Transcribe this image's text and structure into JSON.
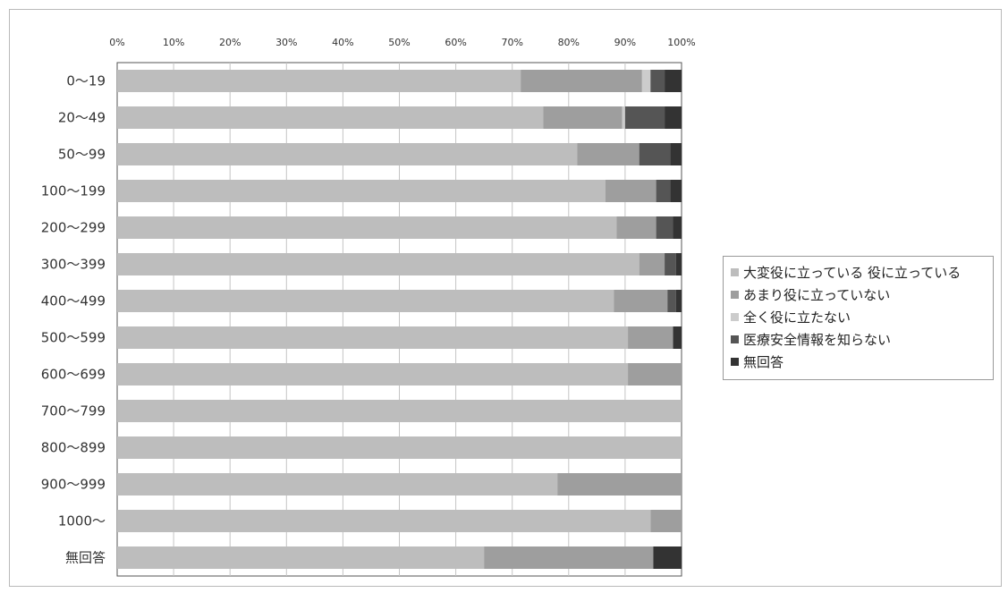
{
  "chart_data": {
    "type": "bar",
    "orientation": "horizontal",
    "stacked": true,
    "title": "",
    "xlabel": "",
    "ylabel": "",
    "xlim": [
      0,
      100
    ],
    "x_ticks": [
      "0%",
      "10%",
      "20%",
      "30%",
      "40%",
      "50%",
      "60%",
      "70%",
      "80%",
      "90%",
      "100%"
    ],
    "grid": true,
    "legend_position": "right",
    "categories": [
      "0～19",
      "20～49",
      "50～99",
      "100～199",
      "200～299",
      "300～399",
      "400～499",
      "500～599",
      "600～699",
      "700～799",
      "800～899",
      "900～999",
      "1000～",
      "無回答"
    ],
    "series": [
      {
        "name": "大変役に立っている 役に立っている",
        "color": "#bdbdbd",
        "values": [
          71.5,
          75.5,
          81.5,
          86.5,
          88.5,
          92.5,
          88.0,
          90.5,
          90.5,
          100,
          100,
          78.0,
          94.5,
          65.0
        ]
      },
      {
        "name": "あまり役に立っていない",
        "color": "#9e9e9e",
        "values": [
          21.5,
          14.0,
          11.0,
          9.0,
          7.0,
          4.5,
          9.5,
          8.0,
          9.5,
          0,
          0,
          22.0,
          5.5,
          30.0
        ]
      },
      {
        "name": "全く役に立たない",
        "color": "#cccccc",
        "values": [
          1.5,
          0.5,
          0,
          0,
          0,
          0,
          0,
          0,
          0,
          0,
          0,
          0,
          0,
          0
        ]
      },
      {
        "name": "医療安全情報を知らない",
        "color": "#555555",
        "values": [
          2.5,
          7.0,
          5.5,
          2.5,
          3.0,
          2.0,
          1.5,
          0,
          0,
          0,
          0,
          0,
          0,
          0
        ]
      },
      {
        "name": "無回答",
        "color": "#333333",
        "values": [
          3.0,
          3.0,
          2.0,
          2.0,
          1.5,
          1.0,
          1.0,
          1.5,
          0,
          0,
          0,
          0,
          0,
          5.0
        ]
      }
    ]
  }
}
